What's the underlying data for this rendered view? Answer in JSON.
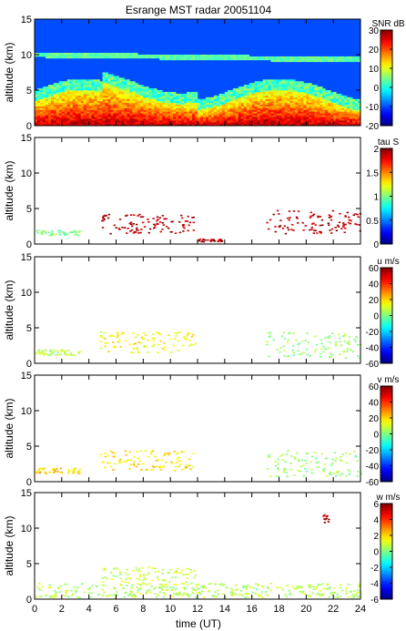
{
  "chart_data": {
    "title": "Esrange MST radar 20051104",
    "xlabel": "time (UT)",
    "x_ticks": [
      "0",
      "2",
      "4",
      "6",
      "8",
      "10",
      "12",
      "14",
      "16",
      "18",
      "20",
      "22",
      "24"
    ],
    "xlim": [
      0,
      24
    ],
    "panels": [
      {
        "type": "heatmap",
        "ylabel": "altitude (km)",
        "ylim": [
          0,
          15
        ],
        "y_ticks": [
          "0",
          "5",
          "10",
          "15"
        ],
        "colorbar": {
          "label": "SNR dB",
          "range": [
            -20,
            30
          ],
          "ticks": [
            "-20",
            "-10",
            "0",
            "10",
            "20",
            "30"
          ],
          "colormap": "jet"
        },
        "layers": [
          {
            "t_start": 0,
            "t_end": 24,
            "altitude_top": 3.5,
            "description": "strong echo"
          },
          {
            "t_start": 0,
            "t_end": 24,
            "altitude_top": 10,
            "description": "weak band"
          }
        ]
      },
      {
        "type": "scatter",
        "ylabel": "altitude (km)",
        "ylim": [
          0,
          15
        ],
        "y_ticks": [
          "0",
          "5",
          "10",
          "15"
        ],
        "colorbar": {
          "label": "tau S",
          "range": [
            0,
            2
          ],
          "ticks": [
            "0",
            "0.5",
            "1",
            "1.5",
            "2"
          ],
          "colormap": "jet"
        },
        "clusters": [
          {
            "t_start": 0.0,
            "t_end": 3.3,
            "alt_min": 1.3,
            "alt_max": 2.0,
            "value": 1.0
          },
          {
            "t_start": 4.8,
            "t_end": 11.8,
            "alt_min": 1.5,
            "alt_max": 4.3,
            "value": 1.9
          },
          {
            "t_start": 12.0,
            "t_end": 14.0,
            "alt_min": 0.4,
            "alt_max": 0.8,
            "value": 1.9
          },
          {
            "t_start": 17.0,
            "t_end": 24.0,
            "alt_min": 1.5,
            "alt_max": 4.8,
            "value": 1.9
          }
        ]
      },
      {
        "type": "scatter",
        "ylabel": "altitude (km)",
        "ylim": [
          0,
          15
        ],
        "y_ticks": [
          "0",
          "5",
          "10",
          "15"
        ],
        "colorbar": {
          "label": "u m/s",
          "range": [
            -60,
            60
          ],
          "ticks": [
            "-60",
            "-40",
            "-20",
            "0",
            "20",
            "40",
            "60"
          ],
          "colormap": "jet"
        },
        "clusters": [
          {
            "t_start": 0.0,
            "t_end": 3.3,
            "alt_min": 1.2,
            "alt_max": 2.0,
            "value": 8
          },
          {
            "t_start": 4.8,
            "t_end": 11.8,
            "alt_min": 1.6,
            "alt_max": 4.5,
            "value": 15
          },
          {
            "t_start": 17.0,
            "t_end": 24.0,
            "alt_min": 0.8,
            "alt_max": 4.6,
            "value": 3
          }
        ]
      },
      {
        "type": "scatter",
        "ylabel": "altitude (km)",
        "ylim": [
          0,
          15
        ],
        "y_ticks": [
          "0",
          "5",
          "10",
          "15"
        ],
        "colorbar": {
          "label": "v m/s",
          "range": [
            -60,
            60
          ],
          "ticks": [
            "-60",
            "-40",
            "-20",
            "0",
            "20",
            "40",
            "60"
          ],
          "colormap": "jet"
        },
        "clusters": [
          {
            "t_start": 0.0,
            "t_end": 3.3,
            "alt_min": 1.2,
            "alt_max": 2.0,
            "value": 20
          },
          {
            "t_start": 4.8,
            "t_end": 11.8,
            "alt_min": 1.6,
            "alt_max": 4.5,
            "value": 18
          },
          {
            "t_start": 17.0,
            "t_end": 24.0,
            "alt_min": 0.8,
            "alt_max": 4.6,
            "value": 3
          }
        ]
      },
      {
        "type": "scatter",
        "ylabel": "altitude (km)",
        "ylim": [
          0,
          15
        ],
        "y_ticks": [
          "0",
          "5",
          "10",
          "15"
        ],
        "colorbar": {
          "label": "w m/s",
          "range": [
            -6,
            6
          ],
          "ticks": [
            "-6",
            "-4",
            "-2",
            "0",
            "2",
            "4",
            "6"
          ],
          "colormap": "jet"
        },
        "clusters": [
          {
            "t_start": 0.0,
            "t_end": 24.0,
            "alt_min": 0.3,
            "alt_max": 2.3,
            "value": 0.6
          },
          {
            "t_start": 4.8,
            "t_end": 11.8,
            "alt_min": 2.0,
            "alt_max": 4.6,
            "value": 0.8
          },
          {
            "t_start": 21.2,
            "t_end": 21.6,
            "alt_min": 10.5,
            "alt_max": 12.0,
            "value": 5.5
          }
        ]
      }
    ]
  }
}
